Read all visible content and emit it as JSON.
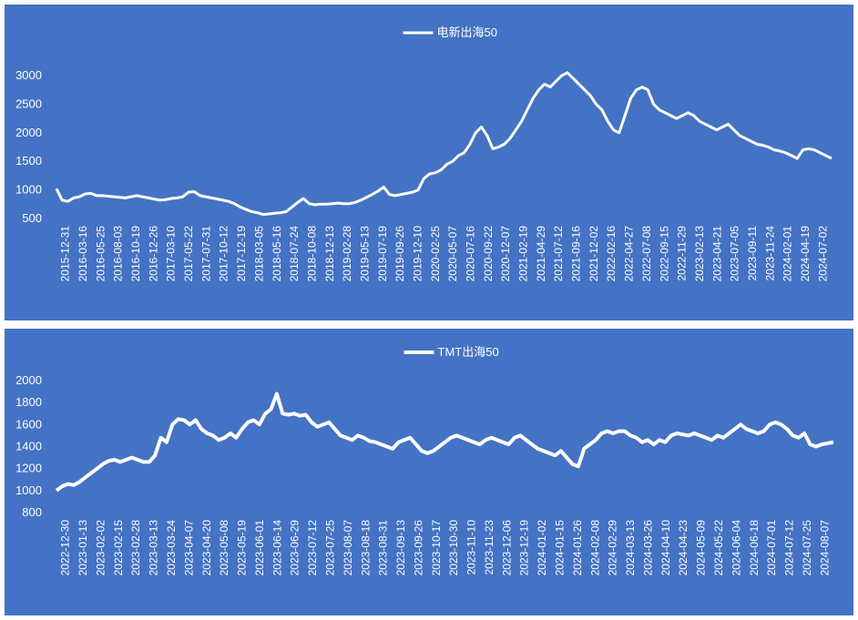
{
  "chart_data": [
    {
      "type": "area",
      "legend": {
        "label": "电新出海50",
        "position": "top"
      },
      "color": "#ffffff",
      "background": "#4472C4",
      "ylim": [
        500,
        3000
      ],
      "yticks": [
        500,
        1000,
        1500,
        2000,
        2500,
        3000
      ],
      "xticks": [
        "2015-12-31",
        "2016-03-16",
        "2016-05-25",
        "2016-08-03",
        "2016-10-19",
        "2016-12-26",
        "2017-03-10",
        "2017-05-22",
        "2017-07-31",
        "2017-10-12",
        "2017-12-19",
        "2018-03-05",
        "2018-05-16",
        "2018-07-24",
        "2018-10-08",
        "2018-12-13",
        "2019-02-28",
        "2019-05-13",
        "2019-07-19",
        "2019-09-26",
        "2019-12-10",
        "2020-02-25",
        "2020-05-07",
        "2020-07-16",
        "2020-09-22",
        "2020-12-07",
        "2021-02-19",
        "2021-04-29",
        "2021-07-12",
        "2021-09-16",
        "2021-12-02",
        "2022-02-16",
        "2022-04-27",
        "2022-07-08",
        "2022-09-15",
        "2022-11-29",
        "2023-02-13",
        "2023-04-21",
        "2023-07-05",
        "2023-09-11",
        "2023-11-24",
        "2024-02-01",
        "2024-04-19",
        "2024-07-02"
      ],
      "series": [
        {
          "name": "电新出海50",
          "values": [
            1020,
            820,
            800,
            860,
            880,
            930,
            940,
            900,
            900,
            890,
            880,
            870,
            860,
            880,
            900,
            880,
            860,
            840,
            820,
            830,
            850,
            860,
            880,
            960,
            970,
            900,
            880,
            860,
            840,
            820,
            800,
            760,
            700,
            660,
            620,
            600,
            570,
            580,
            590,
            600,
            620,
            700,
            780,
            850,
            760,
            740,
            750,
            750,
            760,
            770,
            760,
            760,
            780,
            820,
            870,
            920,
            980,
            1050,
            920,
            900,
            920,
            940,
            960,
            1000,
            1200,
            1280,
            1300,
            1350,
            1450,
            1500,
            1600,
            1650,
            1800,
            2000,
            2100,
            1950,
            1720,
            1750,
            1800,
            1900,
            2050,
            2200,
            2400,
            2600,
            2750,
            2850,
            2800,
            2900,
            3000,
            3050,
            2950,
            2850,
            2750,
            2650,
            2500,
            2400,
            2200,
            2050,
            2000,
            2300,
            2600,
            2750,
            2800,
            2750,
            2500,
            2400,
            2350,
            2300,
            2250,
            2300,
            2350,
            2300,
            2200,
            2150,
            2100,
            2050,
            2100,
            2150,
            2050,
            1950,
            1900,
            1850,
            1800,
            1780,
            1750,
            1700,
            1680,
            1650,
            1600,
            1550,
            1700,
            1720,
            1700,
            1650,
            1600,
            1550
          ]
        }
      ]
    },
    {
      "type": "area",
      "legend": {
        "label": "TMT出海50",
        "position": "top"
      },
      "color": "#ffffff",
      "background": "#4472C4",
      "ylim": [
        800,
        2000
      ],
      "yticks": [
        800,
        1000,
        1200,
        1400,
        1600,
        1800,
        2000
      ],
      "xticks": [
        "2022-12-30",
        "2023-01-13",
        "2023-02-02",
        "2023-02-15",
        "2023-02-28",
        "2023-03-13",
        "2023-03-24",
        "2023-04-07",
        "2023-04-20",
        "2023-05-08",
        "2023-05-19",
        "2023-06-01",
        "2023-06-14",
        "2023-06-29",
        "2023-07-12",
        "2023-07-25",
        "2023-08-07",
        "2023-08-18",
        "2023-08-31",
        "2023-09-13",
        "2023-09-26",
        "2023-10-17",
        "2023-10-30",
        "2023-11-10",
        "2023-11-23",
        "2023-12-06",
        "2023-12-19",
        "2024-01-02",
        "2024-01-15",
        "2024-01-26",
        "2024-02-08",
        "2024-02-29",
        "2024-03-13",
        "2024-03-26",
        "2024-04-10",
        "2024-04-23",
        "2024-05-09",
        "2024-05-22",
        "2024-06-04",
        "2024-06-18",
        "2024-07-01",
        "2024-07-12",
        "2024-07-25",
        "2024-08-07"
      ],
      "series": [
        {
          "name": "TMT出海50",
          "values": [
            1000,
            1040,
            1060,
            1050,
            1080,
            1120,
            1160,
            1200,
            1240,
            1270,
            1280,
            1260,
            1280,
            1300,
            1280,
            1260,
            1260,
            1320,
            1480,
            1440,
            1600,
            1650,
            1640,
            1600,
            1640,
            1560,
            1520,
            1500,
            1460,
            1480,
            1520,
            1480,
            1560,
            1620,
            1640,
            1600,
            1700,
            1740,
            1880,
            1700,
            1690,
            1700,
            1680,
            1690,
            1620,
            1580,
            1600,
            1620,
            1560,
            1500,
            1480,
            1460,
            1500,
            1480,
            1450,
            1440,
            1420,
            1400,
            1380,
            1440,
            1460,
            1480,
            1420,
            1360,
            1340,
            1360,
            1400,
            1440,
            1480,
            1500,
            1480,
            1460,
            1440,
            1420,
            1460,
            1480,
            1460,
            1440,
            1420,
            1480,
            1500,
            1460,
            1420,
            1380,
            1360,
            1340,
            1320,
            1360,
            1300,
            1240,
            1220,
            1380,
            1420,
            1460,
            1520,
            1540,
            1520,
            1540,
            1540,
            1500,
            1480,
            1440,
            1460,
            1420,
            1460,
            1440,
            1500,
            1520,
            1510,
            1500,
            1520,
            1500,
            1480,
            1460,
            1500,
            1480,
            1520,
            1560,
            1600,
            1560,
            1540,
            1520,
            1540,
            1600,
            1620,
            1600,
            1560,
            1500,
            1480,
            1520,
            1420,
            1400,
            1420,
            1430,
            1440
          ]
        }
      ]
    }
  ]
}
